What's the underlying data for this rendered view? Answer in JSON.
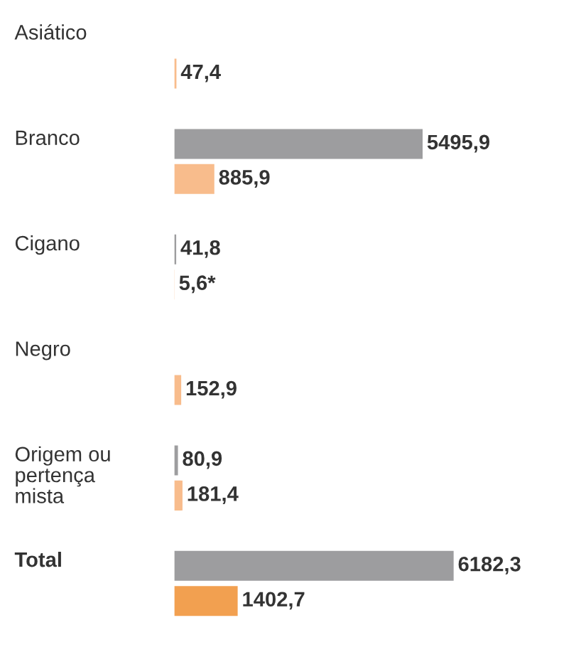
{
  "chart_data": {
    "type": "bar",
    "orientation": "horizontal",
    "categories": [
      "Asiático",
      "Branco",
      "Cigano",
      "Negro",
      "Origem ou\npertença\nmista",
      "Total"
    ],
    "series": [
      {
        "color": "#9d9d9f",
        "values": [
          null,
          5495.9,
          41.8,
          null,
          80.9,
          6182.3
        ],
        "value_labels": [
          null,
          "5495,9",
          "41,8",
          null,
          "80,9",
          "6182,3"
        ]
      },
      {
        "colors": [
          "#f8bc8c",
          "#f8bc8c",
          "#f8bc8c",
          "#f8bc8c",
          "#f8bc8c",
          "#f2a050"
        ],
        "values": [
          47.4,
          885.9,
          5.6,
          152.9,
          181.4,
          1402.7
        ],
        "value_labels": [
          "47,4",
          "885,9",
          "5,6*",
          "152,9",
          "181,4",
          "1402,7"
        ]
      }
    ],
    "legend": false
  }
}
